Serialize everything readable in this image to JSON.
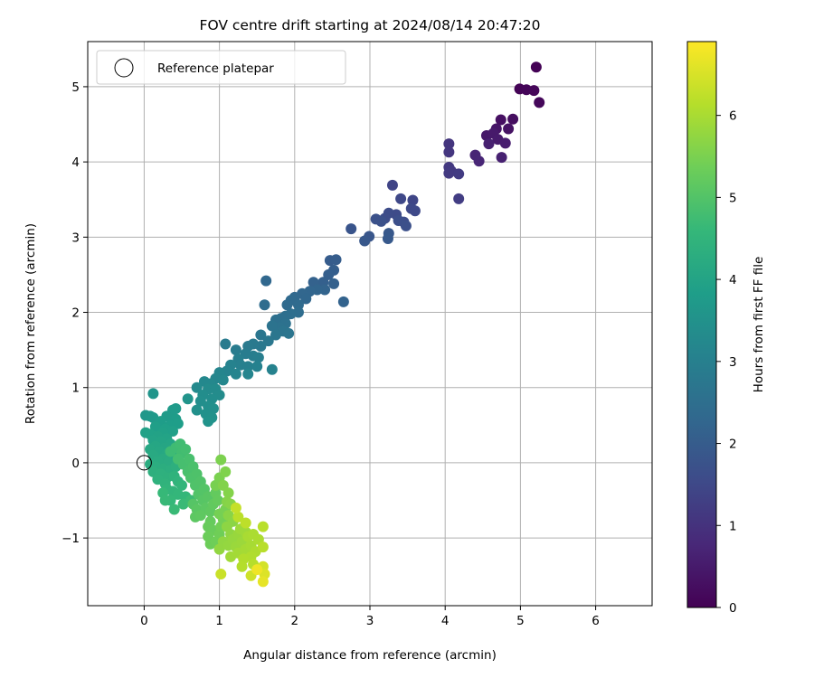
{
  "chart_data": {
    "type": "scatter",
    "title": "FOV centre drift starting at 2024/08/14 20:47:20",
    "xlabel": "Angular distance from reference (arcmin)",
    "ylabel": "Rotation from reference (arcmin)",
    "xlim": [
      -0.75,
      6.75
    ],
    "ylim": [
      -1.9,
      5.6
    ],
    "x_ticks": [
      0,
      1,
      2,
      3,
      4,
      5,
      6
    ],
    "x_tick_labels": [
      "0",
      "1",
      "2",
      "3",
      "4",
      "5",
      "6"
    ],
    "y_ticks": [
      -1,
      0,
      1,
      2,
      3,
      4,
      5
    ],
    "y_tick_labels": [
      "−1",
      "0",
      "1",
      "2",
      "3",
      "4",
      "5"
    ],
    "grid": true,
    "legend": {
      "position": "top-left",
      "entries": [
        {
          "label": "Reference platepar",
          "marker": "open-circle",
          "color": "#000000"
        }
      ]
    },
    "reference_point": {
      "x": 0,
      "y": 0
    },
    "colorbar": {
      "label": "Hours from first FF file",
      "colormap": "viridis",
      "range": [
        0,
        6.9
      ],
      "ticks": [
        0,
        1,
        2,
        3,
        4,
        5,
        6
      ],
      "tick_labels": [
        "0",
        "1",
        "2",
        "3",
        "4",
        "5",
        "6"
      ],
      "colors": [
        "#440154",
        "#482878",
        "#3e4a89",
        "#31688e",
        "#26828e",
        "#1f9e89",
        "#35b779",
        "#6ece58",
        "#b5de2b",
        "#fde725"
      ]
    },
    "points": [
      {
        "x": 5.21,
        "y": 5.26,
        "t": 0.02
      },
      {
        "x": 4.99,
        "y": 4.97,
        "t": 0.05
      },
      {
        "x": 5.08,
        "y": 4.96,
        "t": 0.08
      },
      {
        "x": 5.18,
        "y": 4.95,
        "t": 0.1
      },
      {
        "x": 5.25,
        "y": 4.79,
        "t": 0.12
      },
      {
        "x": 4.9,
        "y": 4.57,
        "t": 0.25
      },
      {
        "x": 4.74,
        "y": 4.56,
        "t": 0.3
      },
      {
        "x": 4.84,
        "y": 4.44,
        "t": 0.35
      },
      {
        "x": 4.68,
        "y": 4.44,
        "t": 0.4
      },
      {
        "x": 4.55,
        "y": 4.35,
        "t": 0.45
      },
      {
        "x": 4.64,
        "y": 4.38,
        "t": 0.5
      },
      {
        "x": 4.7,
        "y": 4.3,
        "t": 0.52
      },
      {
        "x": 4.8,
        "y": 4.25,
        "t": 0.55
      },
      {
        "x": 4.58,
        "y": 4.24,
        "t": 0.6
      },
      {
        "x": 4.75,
        "y": 4.06,
        "t": 0.62
      },
      {
        "x": 4.4,
        "y": 4.09,
        "t": 0.7
      },
      {
        "x": 4.45,
        "y": 4.01,
        "t": 0.72
      },
      {
        "x": 4.05,
        "y": 4.24,
        "t": 1.05
      },
      {
        "x": 4.05,
        "y": 4.13,
        "t": 1.08
      },
      {
        "x": 4.05,
        "y": 3.93,
        "t": 1.12
      },
      {
        "x": 4.08,
        "y": 3.88,
        "t": 1.15
      },
      {
        "x": 4.05,
        "y": 3.85,
        "t": 1.18
      },
      {
        "x": 4.18,
        "y": 3.84,
        "t": 1.2
      },
      {
        "x": 4.18,
        "y": 3.51,
        "t": 1.25
      },
      {
        "x": 3.3,
        "y": 3.69,
        "t": 1.4
      },
      {
        "x": 3.57,
        "y": 3.49,
        "t": 1.45
      },
      {
        "x": 3.41,
        "y": 3.51,
        "t": 1.48
      },
      {
        "x": 3.55,
        "y": 3.38,
        "t": 1.5
      },
      {
        "x": 3.6,
        "y": 3.35,
        "t": 1.52
      },
      {
        "x": 3.35,
        "y": 3.3,
        "t": 1.55
      },
      {
        "x": 3.25,
        "y": 3.32,
        "t": 1.58
      },
      {
        "x": 3.2,
        "y": 3.25,
        "t": 1.6
      },
      {
        "x": 3.45,
        "y": 3.2,
        "t": 1.62
      },
      {
        "x": 3.38,
        "y": 3.22,
        "t": 1.65
      },
      {
        "x": 3.48,
        "y": 3.15,
        "t": 1.68
      },
      {
        "x": 3.08,
        "y": 3.24,
        "t": 1.7
      },
      {
        "x": 3.15,
        "y": 3.21,
        "t": 1.72
      },
      {
        "x": 2.75,
        "y": 3.11,
        "t": 1.8
      },
      {
        "x": 2.99,
        "y": 3.01,
        "t": 1.85
      },
      {
        "x": 2.93,
        "y": 2.95,
        "t": 1.88
      },
      {
        "x": 3.25,
        "y": 3.05,
        "t": 1.9
      },
      {
        "x": 3.24,
        "y": 2.98,
        "t": 1.92
      },
      {
        "x": 2.47,
        "y": 2.69,
        "t": 2.0
      },
      {
        "x": 2.55,
        "y": 2.7,
        "t": 2.02
      },
      {
        "x": 2.52,
        "y": 2.56,
        "t": 2.05
      },
      {
        "x": 2.45,
        "y": 2.5,
        "t": 2.08
      },
      {
        "x": 2.38,
        "y": 2.4,
        "t": 2.1
      },
      {
        "x": 2.52,
        "y": 2.38,
        "t": 2.12
      },
      {
        "x": 2.25,
        "y": 2.4,
        "t": 2.15
      },
      {
        "x": 2.65,
        "y": 2.14,
        "t": 2.18
      },
      {
        "x": 1.62,
        "y": 2.42,
        "t": 2.3
      },
      {
        "x": 2.4,
        "y": 2.3,
        "t": 2.2
      },
      {
        "x": 2.3,
        "y": 2.3,
        "t": 2.22
      },
      {
        "x": 2.2,
        "y": 2.28,
        "t": 2.25
      },
      {
        "x": 2.1,
        "y": 2.25,
        "t": 2.27
      },
      {
        "x": 2.15,
        "y": 2.18,
        "t": 2.28
      },
      {
        "x": 2.0,
        "y": 2.2,
        "t": 2.32
      },
      {
        "x": 1.95,
        "y": 2.16,
        "t": 2.35
      },
      {
        "x": 2.05,
        "y": 2.1,
        "t": 2.38
      },
      {
        "x": 1.9,
        "y": 2.1,
        "t": 2.4
      },
      {
        "x": 1.6,
        "y": 2.1,
        "t": 2.42
      },
      {
        "x": 2.05,
        "y": 2.0,
        "t": 2.45
      },
      {
        "x": 1.95,
        "y": 1.98,
        "t": 2.48
      },
      {
        "x": 1.88,
        "y": 1.95,
        "t": 2.5
      },
      {
        "x": 1.82,
        "y": 1.92,
        "t": 2.52
      },
      {
        "x": 1.75,
        "y": 1.9,
        "t": 2.55
      },
      {
        "x": 1.88,
        "y": 1.85,
        "t": 2.58
      },
      {
        "x": 1.8,
        "y": 1.8,
        "t": 2.6
      },
      {
        "x": 1.7,
        "y": 1.82,
        "t": 2.62
      },
      {
        "x": 1.85,
        "y": 1.75,
        "t": 2.65
      },
      {
        "x": 1.92,
        "y": 1.72,
        "t": 2.68
      },
      {
        "x": 1.75,
        "y": 1.7,
        "t": 2.7
      },
      {
        "x": 1.55,
        "y": 1.7,
        "t": 2.72
      },
      {
        "x": 1.65,
        "y": 1.62,
        "t": 2.75
      },
      {
        "x": 1.55,
        "y": 1.55,
        "t": 2.78
      },
      {
        "x": 1.45,
        "y": 1.58,
        "t": 2.8
      },
      {
        "x": 1.38,
        "y": 1.55,
        "t": 2.82
      },
      {
        "x": 1.08,
        "y": 1.58,
        "t": 2.85
      },
      {
        "x": 1.22,
        "y": 1.5,
        "t": 2.88
      },
      {
        "x": 1.35,
        "y": 1.45,
        "t": 2.9
      },
      {
        "x": 1.45,
        "y": 1.42,
        "t": 2.92
      },
      {
        "x": 1.52,
        "y": 1.4,
        "t": 2.95
      },
      {
        "x": 1.25,
        "y": 1.38,
        "t": 2.97
      },
      {
        "x": 1.28,
        "y": 1.3,
        "t": 3.0
      },
      {
        "x": 1.38,
        "y": 1.28,
        "t": 3.02
      },
      {
        "x": 1.5,
        "y": 1.28,
        "t": 3.04
      },
      {
        "x": 1.7,
        "y": 1.24,
        "t": 3.06
      },
      {
        "x": 1.15,
        "y": 1.3,
        "t": 3.08
      },
      {
        "x": 1.1,
        "y": 1.22,
        "t": 3.1
      },
      {
        "x": 1.22,
        "y": 1.18,
        "t": 3.12
      },
      {
        "x": 1.38,
        "y": 1.18,
        "t": 3.14
      },
      {
        "x": 1.0,
        "y": 1.2,
        "t": 3.16
      },
      {
        "x": 0.95,
        "y": 1.12,
        "t": 3.18
      },
      {
        "x": 1.05,
        "y": 1.1,
        "t": 3.2
      },
      {
        "x": 0.88,
        "y": 1.05,
        "t": 3.22
      },
      {
        "x": 0.8,
        "y": 1.08,
        "t": 3.24
      },
      {
        "x": 0.7,
        "y": 1.0,
        "t": 3.28
      },
      {
        "x": 0.85,
        "y": 0.98,
        "t": 3.3
      },
      {
        "x": 0.95,
        "y": 0.98,
        "t": 3.32
      },
      {
        "x": 1.0,
        "y": 0.9,
        "t": 3.34
      },
      {
        "x": 0.78,
        "y": 0.9,
        "t": 3.36
      },
      {
        "x": 0.9,
        "y": 0.85,
        "t": 3.38
      },
      {
        "x": 0.75,
        "y": 0.82,
        "t": 3.4
      },
      {
        "x": 0.85,
        "y": 0.75,
        "t": 3.42
      },
      {
        "x": 0.92,
        "y": 0.72,
        "t": 3.44
      },
      {
        "x": 0.7,
        "y": 0.7,
        "t": 3.46
      },
      {
        "x": 0.82,
        "y": 0.65,
        "t": 3.48
      },
      {
        "x": 0.9,
        "y": 0.6,
        "t": 3.5
      },
      {
        "x": 0.85,
        "y": 0.55,
        "t": 3.52
      },
      {
        "x": 0.58,
        "y": 0.85,
        "t": 3.55
      },
      {
        "x": 0.12,
        "y": 0.92,
        "t": 3.6
      },
      {
        "x": 0.02,
        "y": 0.63,
        "t": 3.65
      },
      {
        "x": 0.08,
        "y": 0.62,
        "t": 3.68
      },
      {
        "x": 0.12,
        "y": 0.6,
        "t": 3.7
      },
      {
        "x": 0.42,
        "y": 0.72,
        "t": 3.72
      },
      {
        "x": 0.38,
        "y": 0.7,
        "t": 3.74
      },
      {
        "x": 0.3,
        "y": 0.62,
        "t": 3.76
      },
      {
        "x": 0.42,
        "y": 0.58,
        "t": 3.78
      },
      {
        "x": 0.22,
        "y": 0.55,
        "t": 3.8
      },
      {
        "x": 0.35,
        "y": 0.5,
        "t": 3.82
      },
      {
        "x": 0.45,
        "y": 0.52,
        "t": 3.84
      },
      {
        "x": 0.15,
        "y": 0.48,
        "t": 3.86
      },
      {
        "x": 0.28,
        "y": 0.45,
        "t": 3.88
      },
      {
        "x": 0.38,
        "y": 0.42,
        "t": 3.9
      },
      {
        "x": 0.25,
        "y": 0.4,
        "t": 3.92
      },
      {
        "x": 0.02,
        "y": 0.4,
        "t": 3.94
      },
      {
        "x": 0.08,
        "y": 0.38,
        "t": 3.95
      },
      {
        "x": 0.18,
        "y": 0.35,
        "t": 3.96
      },
      {
        "x": 0.3,
        "y": 0.32,
        "t": 3.98
      },
      {
        "x": 0.12,
        "y": 0.3,
        "t": 4.0
      },
      {
        "x": 0.22,
        "y": 0.28,
        "t": 4.02
      },
      {
        "x": 0.35,
        "y": 0.25,
        "t": 4.04
      },
      {
        "x": 0.28,
        "y": 0.2,
        "t": 4.06
      },
      {
        "x": 0.15,
        "y": 0.22,
        "t": 4.08
      },
      {
        "x": 0.08,
        "y": 0.18,
        "t": 4.1
      },
      {
        "x": 0.2,
        "y": 0.15,
        "t": 4.12
      },
      {
        "x": 0.3,
        "y": 0.12,
        "t": 4.14
      },
      {
        "x": 0.38,
        "y": 0.1,
        "t": 4.16
      },
      {
        "x": 0.12,
        "y": 0.1,
        "t": 4.18
      },
      {
        "x": 0.25,
        "y": 0.05,
        "t": 4.2
      },
      {
        "x": 0.18,
        "y": 0.02,
        "t": 4.22
      },
      {
        "x": 0.32,
        "y": 0.0,
        "t": 4.24
      },
      {
        "x": 0.08,
        "y": -0.02,
        "t": 4.26
      },
      {
        "x": 0.15,
        "y": -0.05,
        "t": 4.28
      },
      {
        "x": 0.25,
        "y": -0.08,
        "t": 4.3
      },
      {
        "x": 0.35,
        "y": -0.1,
        "t": 4.32
      },
      {
        "x": 0.42,
        "y": -0.05,
        "t": 4.34
      },
      {
        "x": 0.12,
        "y": -0.12,
        "t": 4.36
      },
      {
        "x": 0.22,
        "y": -0.15,
        "t": 4.38
      },
      {
        "x": 0.3,
        "y": -0.2,
        "t": 4.4
      },
      {
        "x": 0.18,
        "y": -0.22,
        "t": 4.42
      },
      {
        "x": 0.4,
        "y": -0.18,
        "t": 4.44
      },
      {
        "x": 0.28,
        "y": -0.28,
        "t": 4.46
      },
      {
        "x": 0.45,
        "y": -0.25,
        "t": 4.48
      },
      {
        "x": 0.3,
        "y": -0.35,
        "t": 4.5
      },
      {
        "x": 0.38,
        "y": -0.38,
        "t": 4.52
      },
      {
        "x": 0.5,
        "y": -0.3,
        "t": 4.54
      },
      {
        "x": 0.45,
        "y": -0.42,
        "t": 4.56
      },
      {
        "x": 0.55,
        "y": -0.45,
        "t": 4.58
      },
      {
        "x": 0.35,
        "y": -0.5,
        "t": 4.6
      },
      {
        "x": 0.25,
        "y": -0.4,
        "t": 4.62
      },
      {
        "x": 0.28,
        "y": -0.5,
        "t": 4.64
      },
      {
        "x": 0.4,
        "y": -0.62,
        "t": 4.66
      },
      {
        "x": 0.52,
        "y": -0.55,
        "t": 4.68
      },
      {
        "x": 0.62,
        "y": -0.5,
        "t": 4.7
      },
      {
        "x": 0.35,
        "y": 0.15,
        "t": 4.72
      },
      {
        "x": 0.42,
        "y": 0.2,
        "t": 4.74
      },
      {
        "x": 0.48,
        "y": 0.25,
        "t": 4.76
      },
      {
        "x": 0.5,
        "y": 0.12,
        "t": 4.78
      },
      {
        "x": 0.55,
        "y": 0.18,
        "t": 4.8
      },
      {
        "x": 0.45,
        "y": 0.05,
        "t": 4.82
      },
      {
        "x": 0.52,
        "y": -0.02,
        "t": 4.84
      },
      {
        "x": 0.6,
        "y": 0.05,
        "t": 4.86
      },
      {
        "x": 0.58,
        "y": -0.12,
        "t": 4.88
      },
      {
        "x": 0.65,
        "y": -0.05,
        "t": 4.9
      },
      {
        "x": 0.62,
        "y": -0.2,
        "t": 4.92
      },
      {
        "x": 0.7,
        "y": -0.15,
        "t": 4.94
      },
      {
        "x": 0.68,
        "y": -0.3,
        "t": 4.96
      },
      {
        "x": 0.75,
        "y": -0.25,
        "t": 4.98
      },
      {
        "x": 0.72,
        "y": -0.42,
        "t": 5.0
      },
      {
        "x": 0.8,
        "y": -0.35,
        "t": 5.02
      },
      {
        "x": 0.65,
        "y": -0.55,
        "t": 5.04
      },
      {
        "x": 0.78,
        "y": -0.5,
        "t": 5.06
      },
      {
        "x": 0.85,
        "y": -0.45,
        "t": 5.08
      },
      {
        "x": 0.7,
        "y": -0.62,
        "t": 5.1
      },
      {
        "x": 0.82,
        "y": -0.6,
        "t": 5.12
      },
      {
        "x": 0.68,
        "y": -0.72,
        "t": 5.14
      },
      {
        "x": 0.75,
        "y": -0.7,
        "t": 5.16
      },
      {
        "x": 0.88,
        "y": -0.65,
        "t": 5.18
      },
      {
        "x": 0.92,
        "y": -0.55,
        "t": 5.2
      },
      {
        "x": 0.95,
        "y": -0.4,
        "t": 5.22
      },
      {
        "x": 0.98,
        "y": -0.5,
        "t": 5.24
      },
      {
        "x": 0.88,
        "y": -0.78,
        "t": 5.26
      },
      {
        "x": 0.85,
        "y": -0.85,
        "t": 5.28
      },
      {
        "x": 0.92,
        "y": -0.9,
        "t": 5.3
      },
      {
        "x": 0.85,
        "y": -0.98,
        "t": 5.32
      },
      {
        "x": 0.88,
        "y": -1.08,
        "t": 5.34
      },
      {
        "x": 0.95,
        "y": -1.05,
        "t": 5.36
      },
      {
        "x": 1.0,
        "y": -0.95,
        "t": 5.38
      },
      {
        "x": 1.02,
        "y": -0.85,
        "t": 5.4
      },
      {
        "x": 1.05,
        "y": -0.75,
        "t": 5.42
      },
      {
        "x": 1.0,
        "y": -0.68,
        "t": 5.44
      },
      {
        "x": 1.08,
        "y": -0.62,
        "t": 5.46
      },
      {
        "x": 0.95,
        "y": -0.3,
        "t": 5.48
      },
      {
        "x": 1.0,
        "y": -0.2,
        "t": 5.5
      },
      {
        "x": 1.02,
        "y": 0.04,
        "t": 5.52
      },
      {
        "x": 1.08,
        "y": -0.12,
        "t": 5.55
      },
      {
        "x": 1.05,
        "y": -0.3,
        "t": 5.58
      },
      {
        "x": 1.12,
        "y": -0.4,
        "t": 5.6
      },
      {
        "x": 1.1,
        "y": -0.52,
        "t": 5.62
      },
      {
        "x": 1.15,
        "y": -0.55,
        "t": 5.64
      },
      {
        "x": 1.12,
        "y": -0.7,
        "t": 5.66
      },
      {
        "x": 1.18,
        "y": -0.78,
        "t": 5.68
      },
      {
        "x": 1.1,
        "y": -0.85,
        "t": 5.7
      },
      {
        "x": 1.15,
        "y": -0.95,
        "t": 5.72
      },
      {
        "x": 1.05,
        "y": -1.05,
        "t": 5.74
      },
      {
        "x": 1.0,
        "y": -1.15,
        "t": 5.76
      },
      {
        "x": 1.12,
        "y": -1.1,
        "t": 5.78
      },
      {
        "x": 1.18,
        "y": -1.02,
        "t": 5.8
      },
      {
        "x": 1.25,
        "y": -0.95,
        "t": 5.82
      },
      {
        "x": 1.22,
        "y": -1.12,
        "t": 5.84
      },
      {
        "x": 1.3,
        "y": -1.05,
        "t": 5.86
      },
      {
        "x": 1.28,
        "y": -0.88,
        "t": 5.88
      },
      {
        "x": 1.35,
        "y": -0.92,
        "t": 5.9
      },
      {
        "x": 1.15,
        "y": -1.25,
        "t": 5.92
      },
      {
        "x": 1.25,
        "y": -1.2,
        "t": 5.94
      },
      {
        "x": 1.35,
        "y": -1.15,
        "t": 5.96
      },
      {
        "x": 1.42,
        "y": -1.1,
        "t": 5.98
      },
      {
        "x": 1.38,
        "y": -0.98,
        "t": 6.0
      },
      {
        "x": 1.45,
        "y": -0.95,
        "t": 6.02
      },
      {
        "x": 1.52,
        "y": -1.02,
        "t": 6.04
      },
      {
        "x": 1.48,
        "y": -1.18,
        "t": 6.06
      },
      {
        "x": 1.42,
        "y": -1.25,
        "t": 6.08
      },
      {
        "x": 1.32,
        "y": -1.28,
        "t": 6.1
      },
      {
        "x": 1.3,
        "y": -1.38,
        "t": 6.12
      },
      {
        "x": 1.45,
        "y": -1.35,
        "t": 6.14
      },
      {
        "x": 1.58,
        "y": -1.12,
        "t": 6.16
      },
      {
        "x": 1.58,
        "y": -0.85,
        "t": 6.18
      },
      {
        "x": 1.25,
        "y": -0.72,
        "t": 6.2
      },
      {
        "x": 1.35,
        "y": -0.8,
        "t": 6.22
      },
      {
        "x": 1.22,
        "y": -0.6,
        "t": 6.3
      },
      {
        "x": 1.02,
        "y": -1.48,
        "t": 6.35
      },
      {
        "x": 1.42,
        "y": -1.5,
        "t": 6.4
      },
      {
        "x": 1.58,
        "y": -1.38,
        "t": 6.45
      },
      {
        "x": 1.6,
        "y": -1.48,
        "t": 6.55
      },
      {
        "x": 1.58,
        "y": -1.58,
        "t": 6.65
      },
      {
        "x": 1.5,
        "y": -1.42,
        "t": 6.75
      }
    ]
  }
}
